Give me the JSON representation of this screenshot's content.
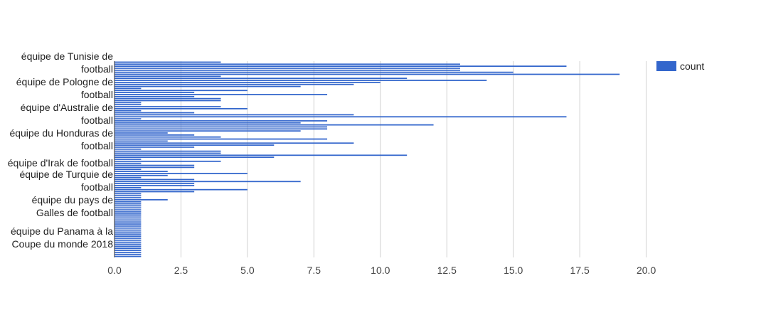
{
  "chart_data": {
    "type": "bar",
    "orientation": "horizontal",
    "title": "",
    "xlabel": "",
    "ylabel": "",
    "xlim": [
      0,
      21
    ],
    "x_ticks": [
      "0.0",
      "2.5",
      "5.0",
      "7.5",
      "10.0",
      "12.5",
      "15.0",
      "17.5",
      "20.0"
    ],
    "grid": true,
    "legend_position": "top-right",
    "series": [
      {
        "name": "count",
        "color": "#3366cc",
        "values": [
          4,
          13,
          17,
          13,
          13,
          15,
          19,
          4,
          11,
          14,
          10,
          9,
          7,
          1,
          5,
          3,
          8,
          3,
          4,
          4,
          1,
          1,
          4,
          5,
          1,
          3,
          9,
          17,
          1,
          8,
          7,
          12,
          8,
          8,
          7,
          2,
          3,
          4,
          8,
          2,
          9,
          6,
          3,
          1,
          4,
          4,
          11,
          6,
          1,
          4,
          1,
          3,
          3,
          1,
          2,
          5,
          2,
          1,
          3,
          7,
          3,
          3,
          1,
          5,
          3,
          1,
          1,
          1,
          2,
          1,
          1,
          1,
          1,
          1,
          1,
          1,
          1,
          1,
          1,
          1,
          1,
          1,
          1,
          1,
          1,
          1,
          1,
          1,
          1,
          1,
          1,
          1,
          1,
          1,
          1,
          1,
          1
        ]
      }
    ],
    "y_labels": [
      {
        "line1": "équipe de Tunisie de",
        "line2": "football"
      },
      {
        "line1": "équipe de Pologne de",
        "line2": "football"
      },
      {
        "line1": "équipe d'Australie de",
        "line2": "football"
      },
      {
        "line1": "équipe du Honduras de",
        "line2": "football"
      },
      {
        "line1": "équipe d'Irak de football",
        "line2": ""
      },
      {
        "line1": "équipe de Turquie de",
        "line2": "football"
      },
      {
        "line1": "équipe du pays de",
        "line2": "Galles de football"
      },
      {
        "line1": "équipe du Panama à la",
        "line2": "Coupe du monde 2018"
      }
    ]
  }
}
